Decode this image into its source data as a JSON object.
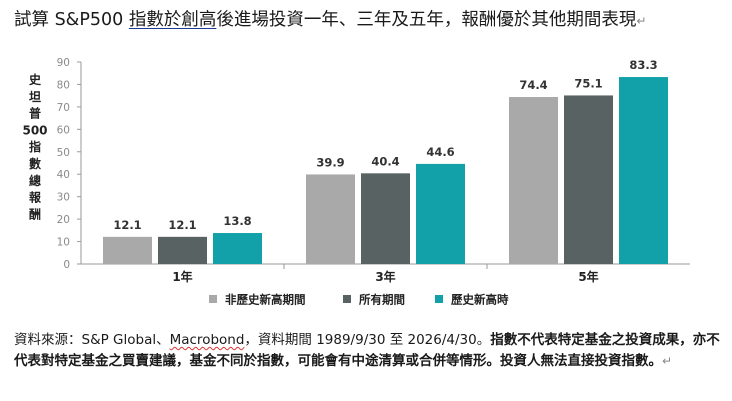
{
  "title": {
    "prefix": "試算 S&P500 ",
    "underlined": "指數於創高",
    "suffix": "後進場投資一年、三年及五年，報酬優於其他期間表現",
    "mark": "↵"
  },
  "colors": {
    "non_high": "#a9a9a9",
    "all": "#596262",
    "high": "#12a1a8"
  },
  "chart_data": {
    "type": "bar",
    "categories": [
      "1年",
      "3年",
      "5年"
    ],
    "series": [
      {
        "name": "非歷史新高期間",
        "values": [
          12.1,
          39.9,
          74.4
        ],
        "labels": [
          "12.1",
          "39.9",
          "74.4"
        ]
      },
      {
        "name": "所有期間",
        "values": [
          12.1,
          40.4,
          75.1
        ],
        "labels": [
          "12.1",
          "40.4",
          "75.1"
        ]
      },
      {
        "name": "歷史新高時",
        "values": [
          13.8,
          44.6,
          83.3
        ],
        "labels": [
          "13.8",
          "44.6",
          "83.3"
        ]
      }
    ],
    "ylabel": "史坦普500指數總報酬",
    "ylim": [
      0,
      90
    ],
    "yticks": [
      "0",
      "10",
      "20",
      "30",
      "40",
      "50",
      "60",
      "70",
      "80",
      "90"
    ],
    "grid": false,
    "legend": "bottom"
  },
  "note": {
    "prefix": "資料來源：S&P Global、",
    "squiggle": "Macrobond",
    "middle": "，資料期間 1989/9/30 至 2026/4/30。",
    "bold": "指數不代表特定基金之投資成果，亦不代表對特定基金之買賣建議，基金不同於指數，可能會有中途清算或合併等情形。投資人無法直接投資指數。",
    "mark": "↵"
  }
}
